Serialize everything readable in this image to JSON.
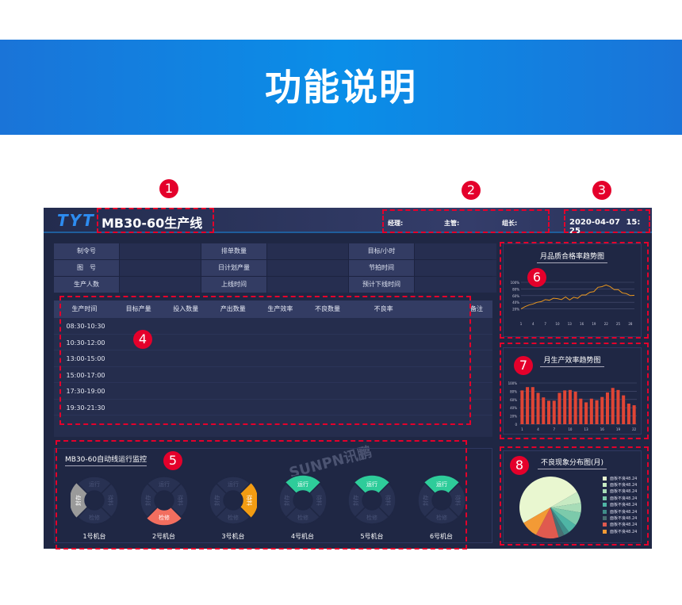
{
  "banner": {
    "title": "功能说明"
  },
  "header": {
    "logo": "TYT",
    "title": "MB30-60生产线",
    "manager": "经理:",
    "supervisor": "主管:",
    "leader": "组长:",
    "date": "2020-04-07",
    "time": "15: 25"
  },
  "info": [
    [
      "制令号",
      "",
      "排单数量",
      "",
      "目标/小时",
      ""
    ],
    [
      "图　号",
      "",
      "日计划产量",
      "",
      "节拍时间",
      ""
    ],
    [
      "生产人数",
      "",
      "上线时间",
      "",
      "预计下线时间",
      ""
    ]
  ],
  "table": {
    "headers": [
      "生产时间",
      "目标产量",
      "投入数量",
      "产出数量",
      "生产效率",
      "不良数量",
      "不良率",
      "备注"
    ],
    "rows": [
      "08:30-10:30",
      "10:30-12:00",
      "13:00-15:00",
      "15:00-17:00",
      "17:30-19:00",
      "19:30-21:30"
    ]
  },
  "watermark": "SUNPN讯鹏",
  "monitor": {
    "title": "MB30-60自动线运行监控",
    "segments": [
      "运行",
      "待料",
      "检修",
      "封存"
    ],
    "machines": [
      {
        "name": "1号机台",
        "active": "封存",
        "color": "#9a9a9a"
      },
      {
        "name": "2号机台",
        "active": "检修",
        "color": "#f26e5f"
      },
      {
        "name": "3号机台",
        "active": "待料",
        "color": "#f39c12"
      },
      {
        "name": "4号机台",
        "active": "运行",
        "color": "#2ecc9a"
      },
      {
        "name": "5号机台",
        "active": "运行",
        "color": "#2ecc9a"
      },
      {
        "name": "6号机台",
        "active": "运行",
        "color": "#2ecc9a"
      }
    ]
  },
  "chart_data": [
    {
      "type": "line",
      "title": "月品质合格率趋势图",
      "x_ticks": [
        "1",
        "4",
        "7",
        "10",
        "13",
        "16",
        "19",
        "22",
        "25",
        "28"
      ],
      "y_ticks": [
        "20%",
        "40%",
        "60%",
        "80%",
        "100%"
      ],
      "ylim": [
        0,
        100
      ],
      "color": "#e8961e",
      "x": [
        1,
        2,
        3,
        4,
        5,
        6,
        7,
        8,
        9,
        10,
        11,
        12,
        13,
        14,
        15,
        16,
        17,
        18,
        19,
        20,
        21,
        22,
        23,
        24,
        25,
        26,
        27,
        28,
        29
      ],
      "values": [
        20,
        27,
        32,
        35,
        40,
        42,
        48,
        46,
        52,
        51,
        48,
        56,
        47,
        55,
        52,
        62,
        62,
        70,
        72,
        85,
        87,
        92,
        87,
        78,
        78,
        68,
        66,
        60,
        61
      ]
    },
    {
      "type": "bar",
      "title": "月生产效率趋势图",
      "x_ticks": [
        "1",
        "4",
        "7",
        "10",
        "13",
        "16",
        "19",
        "22"
      ],
      "y_ticks": [
        "0",
        "20%",
        "40%",
        "60%",
        "80%",
        "100%"
      ],
      "ylim": [
        0,
        100
      ],
      "color": "#e04535",
      "x": [
        1,
        2,
        3,
        4,
        5,
        6,
        7,
        8,
        9,
        10,
        11,
        12,
        13,
        14,
        15,
        16,
        17,
        18,
        19,
        20,
        21,
        22
      ],
      "values": [
        82,
        90,
        90,
        76,
        65,
        57,
        57,
        76,
        82,
        83,
        79,
        62,
        53,
        62,
        58,
        66,
        77,
        88,
        83,
        70,
        50,
        46
      ]
    },
    {
      "type": "pie",
      "title": "不良现象分布图(月)",
      "labels": [
        "面板不良48.24",
        "面板不良48.24",
        "面板不良48.24",
        "面板不良48.24",
        "面板不良48.24",
        "面板不良48.24",
        "面板不良48.24",
        "面板不良48.24",
        "面板不良48.24"
      ],
      "values": [
        50,
        6,
        5,
        7,
        5,
        3,
        3,
        12,
        9
      ],
      "colors": [
        "#e9f7d0",
        "#c7eac2",
        "#a7dcb7",
        "#7ccaab",
        "#4fb5a5",
        "#3f8d89",
        "#4a6f72",
        "#e05a4f",
        "#f39a35"
      ]
    }
  ],
  "callouts": [
    "1",
    "2",
    "3",
    "4",
    "5",
    "6",
    "7",
    "8"
  ]
}
